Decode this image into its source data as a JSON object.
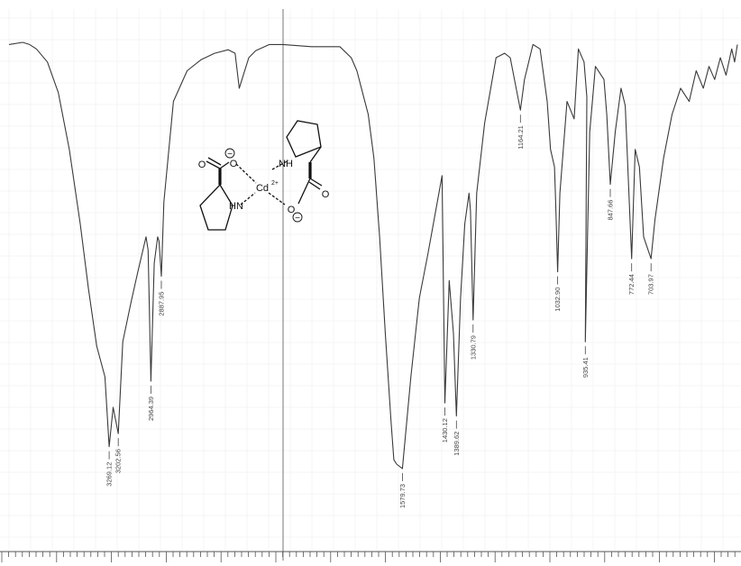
{
  "chart_data": {
    "type": "line",
    "title": "",
    "xlabel": "",
    "ylabel": "",
    "x_axis": "wavenumber (reversed, high to low)",
    "grid": "faint background grid",
    "series": [
      {
        "points": [
          [
            4000,
            96
          ],
          [
            3900,
            96.5
          ],
          [
            3850,
            96
          ],
          [
            3800,
            95
          ],
          [
            3720,
            92
          ],
          [
            3640,
            85
          ],
          [
            3560,
            72
          ],
          [
            3480,
            55
          ],
          [
            3420,
            40
          ],
          [
            3360,
            27
          ],
          [
            3300,
            20
          ],
          [
            3269.12,
            4
          ],
          [
            3240,
            13
          ],
          [
            3202.56,
            7
          ],
          [
            3170,
            28
          ],
          [
            3110,
            37
          ],
          [
            3060,
            44
          ],
          [
            3000,
            52
          ],
          [
            2985,
            49
          ],
          [
            2964.39,
            19
          ],
          [
            2940,
            46
          ],
          [
            2915,
            52
          ],
          [
            2905,
            51
          ],
          [
            2887.95,
            43
          ],
          [
            2870,
            60
          ],
          [
            2800,
            83
          ],
          [
            2700,
            90
          ],
          [
            2600,
            92.5
          ],
          [
            2500,
            94
          ],
          [
            2400,
            94.8
          ],
          [
            2350,
            94
          ],
          [
            2320,
            86
          ],
          [
            2290,
            89
          ],
          [
            2250,
            93
          ],
          [
            2200,
            94.6
          ],
          [
            2100,
            96
          ],
          [
            2000,
            96
          ],
          [
            1900,
            95.5
          ],
          [
            1800,
            95.5
          ],
          [
            1760,
            93
          ],
          [
            1740,
            90
          ],
          [
            1720,
            85
          ],
          [
            1700,
            80
          ],
          [
            1680,
            70
          ],
          [
            1660,
            52
          ],
          [
            1640,
            30
          ],
          [
            1620,
            10
          ],
          [
            1610,
            1
          ],
          [
            1600,
            0
          ],
          [
            1579.73,
            -1
          ],
          [
            1550,
            20
          ],
          [
            1520,
            38
          ],
          [
            1490,
            48
          ],
          [
            1440,
            66
          ],
          [
            1430.12,
            14
          ],
          [
            1415,
            42
          ],
          [
            1400,
            30
          ],
          [
            1389.62,
            11
          ],
          [
            1375,
            38
          ],
          [
            1360,
            55
          ],
          [
            1345,
            62
          ],
          [
            1340,
            58
          ],
          [
            1330.79,
            33
          ],
          [
            1318,
            62
          ],
          [
            1290,
            78
          ],
          [
            1250,
            93
          ],
          [
            1220,
            94
          ],
          [
            1200,
            93
          ],
          [
            1185,
            88
          ],
          [
            1164.21,
            81
          ],
          [
            1150,
            88
          ],
          [
            1120,
            96
          ],
          [
            1095,
            95
          ],
          [
            1070,
            83
          ],
          [
            1058,
            72
          ],
          [
            1044,
            68
          ],
          [
            1040,
            60
          ],
          [
            1032.9,
            44
          ],
          [
            1025,
            62
          ],
          [
            1000,
            83
          ],
          [
            975,
            79
          ],
          [
            960,
            95
          ],
          [
            940,
            92
          ],
          [
            930,
            84
          ],
          [
            935.41,
            28
          ],
          [
            920,
            76
          ],
          [
            900,
            91
          ],
          [
            870,
            88
          ],
          [
            860,
            80
          ],
          [
            847.66,
            64
          ],
          [
            830,
            76
          ],
          [
            810,
            86
          ],
          [
            795,
            82
          ],
          [
            772.44,
            47
          ],
          [
            760,
            72
          ],
          [
            745,
            68
          ],
          [
            730,
            52
          ],
          [
            703.97,
            47
          ],
          [
            690,
            56
          ],
          [
            660,
            70
          ],
          [
            630,
            80
          ],
          [
            600,
            86
          ],
          [
            570,
            83
          ],
          [
            545,
            90
          ],
          [
            520,
            86
          ],
          [
            500,
            91
          ],
          [
            480,
            88
          ],
          [
            460,
            93
          ],
          [
            440,
            89
          ],
          [
            420,
            95
          ],
          [
            410,
            92
          ],
          [
            400,
            96
          ]
        ]
      }
    ],
    "peak_labels": [
      {
        "x": 3269.12,
        "y": 4,
        "label": "3269.12"
      },
      {
        "x": 3202.56,
        "y": 7,
        "label": "3202.56"
      },
      {
        "x": 2964.39,
        "y": 19,
        "label": "2964.39"
      },
      {
        "x": 2887.95,
        "y": 43,
        "label": "2887.95"
      },
      {
        "x": 1579.73,
        "y": -1,
        "label": "1579.73"
      },
      {
        "x": 1430.12,
        "y": 14,
        "label": "1430.12"
      },
      {
        "x": 1389.62,
        "y": 11,
        "label": "1389.62"
      },
      {
        "x": 1330.79,
        "y": 33,
        "label": "1330.79"
      },
      {
        "x": 1164.21,
        "y": 81,
        "label": "1164.21"
      },
      {
        "x": 1032.9,
        "y": 44,
        "label": "1032.90"
      },
      {
        "x": 935.41,
        "y": 28,
        "label": "935.41"
      },
      {
        "x": 847.66,
        "y": 64,
        "label": "847.66"
      },
      {
        "x": 772.44,
        "y": 47,
        "label": "772.44"
      },
      {
        "x": 703.97,
        "y": 47,
        "label": "703.97"
      }
    ],
    "structure": {
      "metal_label": "Cd",
      "metal_charge": "2+",
      "nh_label": "NH",
      "hn_label": "HN",
      "o_label": "O",
      "o_minus_label": "O",
      "minus_sign": "−"
    },
    "colors": {
      "trace": "#3a3a3a",
      "labels": "#444444",
      "grid": "#eeeeee",
      "background": "#ffffff"
    }
  }
}
